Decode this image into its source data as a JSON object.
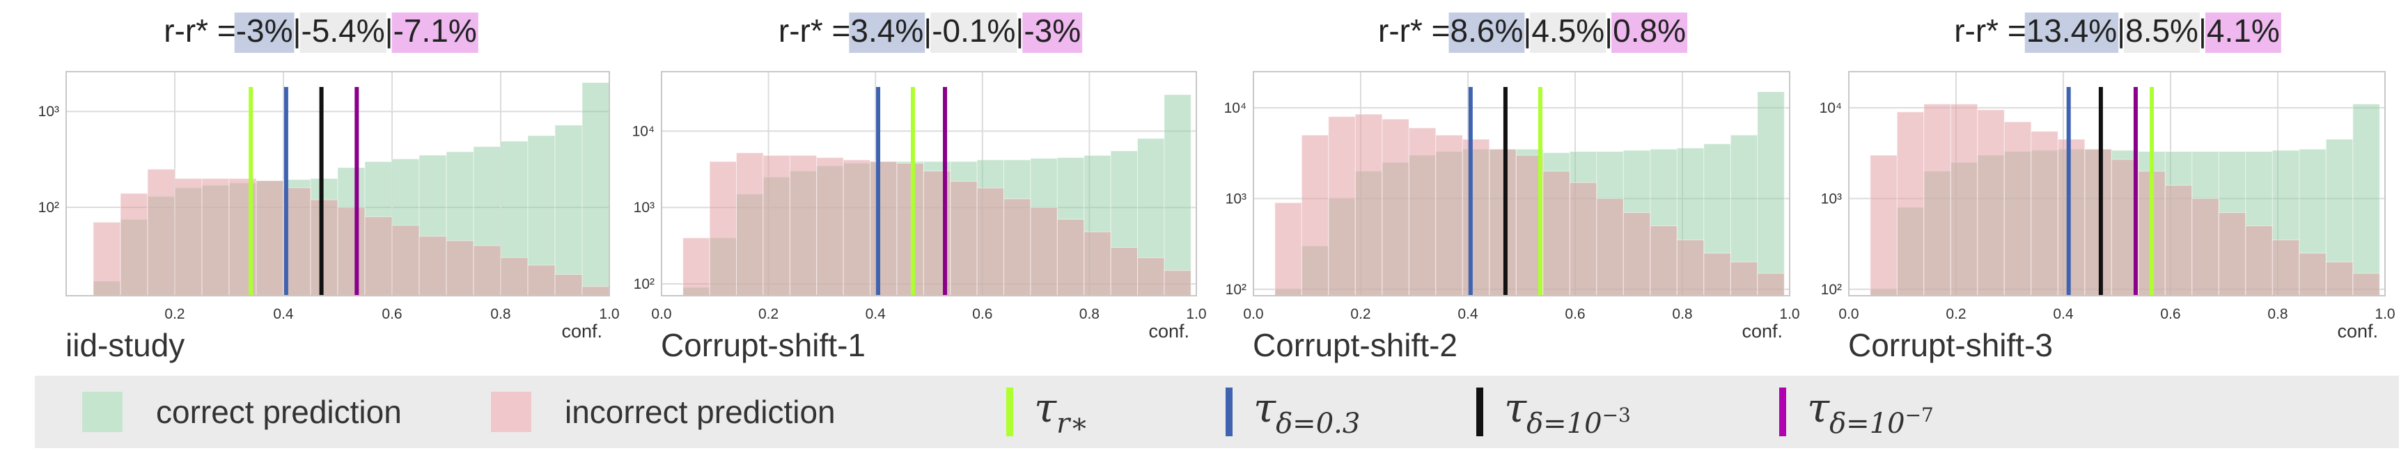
{
  "colors": {
    "correct": "#8fcca4",
    "incorrect": "#e2a0a6",
    "tau_rstar": "#adff2f",
    "tau_d03": "#3f63b0",
    "tau_d1e3": "#111111",
    "tau_d1e7": "#8b008b",
    "box_blue": "#c5cde3",
    "box_gray": "#ececec",
    "box_pink": "#efb8ef"
  },
  "legend": {
    "correct_label": "correct prediction",
    "incorrect_label": "incorrect prediction",
    "tau_rstar": {
      "base": "τ",
      "sub": "r∗"
    },
    "tau_d03": {
      "base": "τ",
      "sub": "δ=0.3"
    },
    "tau_d1e3": {
      "base": "τ",
      "sub": "δ=10",
      "sup": "−3"
    },
    "tau_d1e7": {
      "base": "τ",
      "sub": "δ=10",
      "sup": "−7"
    }
  },
  "chart_data": [
    {
      "type": "bar",
      "name": "iid-study",
      "title_prefix": "r-r* =",
      "risk_gaps": [
        "-3%",
        "-5.4%",
        "-7.1%"
      ],
      "xlabel": "conf.",
      "subplot_label": "iid-study",
      "xlim": [
        0.0,
        1.0
      ],
      "xticks": [
        "0.2",
        "0.4",
        "0.6",
        "0.8",
        "1.0"
      ],
      "log_y": true,
      "ylim": [
        12,
        2600
      ],
      "yticks": [
        {
          "value": 100,
          "label": "10²"
        },
        {
          "value": 1000,
          "label": "10³"
        }
      ],
      "bin_edges": [
        0.05,
        0.1,
        0.15,
        0.2,
        0.25,
        0.3,
        0.35,
        0.4,
        0.45,
        0.5,
        0.55,
        0.6,
        0.65,
        0.7,
        0.75,
        0.8,
        0.85,
        0.9,
        0.95,
        1.0
      ],
      "series": [
        {
          "name": "correct prediction",
          "values": [
            17,
            75,
            130,
            160,
            170,
            180,
            190,
            195,
            200,
            260,
            300,
            320,
            350,
            380,
            430,
            490,
            560,
            720,
            2000
          ]
        },
        {
          "name": "incorrect prediction",
          "values": [
            70,
            140,
            250,
            200,
            200,
            200,
            190,
            160,
            120,
            100,
            80,
            65,
            50,
            45,
            40,
            30,
            25,
            20,
            15
          ]
        }
      ],
      "thresholds": {
        "tau_rstar": 0.34,
        "tau_d03": 0.405,
        "tau_d1e3": 0.47,
        "tau_d1e7": 0.535
      }
    },
    {
      "type": "bar",
      "name": "Corrupt-shift-1",
      "title_prefix": "r-r* =",
      "risk_gaps": [
        "3.4%",
        "-0.1%",
        "-3%"
      ],
      "xlabel": "conf.",
      "subplot_label": "Corrupt-shift-1",
      "xlim": [
        0.0,
        1.0
      ],
      "xticks": [
        "0.0",
        "0.2",
        "0.4",
        "0.6",
        "0.8",
        "1.0"
      ],
      "log_y": true,
      "ylim": [
        70,
        60000
      ],
      "yticks": [
        {
          "value": 100,
          "label": "10²"
        },
        {
          "value": 1000,
          "label": "10³"
        },
        {
          "value": 10000,
          "label": "10⁴"
        }
      ],
      "bin_edges": [
        0.04,
        0.09,
        0.14,
        0.19,
        0.24,
        0.29,
        0.34,
        0.39,
        0.44,
        0.49,
        0.54,
        0.59,
        0.64,
        0.69,
        0.74,
        0.79,
        0.84,
        0.89,
        0.94,
        0.99
      ],
      "series": [
        {
          "name": "correct prediction",
          "values": [
            90,
            400,
            1500,
            2500,
            3000,
            3500,
            3800,
            4000,
            4000,
            4000,
            4000,
            4200,
            4200,
            4400,
            4500,
            4800,
            5500,
            8000,
            30000
          ]
        },
        {
          "name": "incorrect prediction",
          "values": [
            400,
            4000,
            5200,
            4800,
            4800,
            4500,
            4200,
            4000,
            3800,
            3000,
            2200,
            1800,
            1300,
            1000,
            700,
            480,
            300,
            220,
            150
          ]
        }
      ],
      "thresholds": {
        "tau_d03": 0.405,
        "tau_rstar": 0.47,
        "tau_d1e7": 0.53
      }
    },
    {
      "type": "bar",
      "name": "Corrupt-shift-2",
      "title_prefix": "r-r* =",
      "risk_gaps": [
        "8.6%",
        "4.5%",
        "0.8%"
      ],
      "xlabel": "conf.",
      "subplot_label": "Corrupt-shift-2",
      "xlim": [
        0.0,
        1.0
      ],
      "xticks": [
        "0.0",
        "0.2",
        "0.4",
        "0.6",
        "0.8",
        "1.0"
      ],
      "log_y": true,
      "ylim": [
        85,
        25000
      ],
      "yticks": [
        {
          "value": 100,
          "label": "10²"
        },
        {
          "value": 1000,
          "label": "10³"
        },
        {
          "value": 10000,
          "label": "10⁴"
        }
      ],
      "bin_edges": [
        0.04,
        0.09,
        0.14,
        0.19,
        0.24,
        0.29,
        0.34,
        0.39,
        0.44,
        0.49,
        0.54,
        0.59,
        0.64,
        0.69,
        0.74,
        0.79,
        0.84,
        0.89,
        0.94,
        0.99
      ],
      "series": [
        {
          "name": "correct prediction",
          "values": [
            100,
            300,
            1000,
            2000,
            2500,
            3000,
            3300,
            3500,
            3500,
            3500,
            3200,
            3300,
            3300,
            3400,
            3500,
            3600,
            4000,
            5000,
            15000
          ]
        },
        {
          "name": "incorrect prediction",
          "values": [
            900,
            5000,
            8000,
            8500,
            7500,
            6000,
            5000,
            4500,
            3500,
            3000,
            2000,
            1500,
            1000,
            700,
            500,
            350,
            250,
            200,
            150
          ]
        }
      ],
      "thresholds": {
        "tau_d03": 0.405,
        "tau_d1e3": 0.47,
        "tau_rstar": 0.535
      }
    },
    {
      "type": "bar",
      "name": "Corrupt-shift-3",
      "title_prefix": "r-r* =",
      "risk_gaps": [
        "13.4%",
        "8.5%",
        "4.1%"
      ],
      "xlabel": "conf.",
      "subplot_label": "Corrupt-shift-3",
      "xlim": [
        0.0,
        1.0
      ],
      "xticks": [
        "0.0",
        "0.2",
        "0.4",
        "0.6",
        "0.8",
        "1.0"
      ],
      "log_y": true,
      "ylim": [
        85,
        25000
      ],
      "yticks": [
        {
          "value": 100,
          "label": "10²"
        },
        {
          "value": 1000,
          "label": "10³"
        },
        {
          "value": 10000,
          "label": "10⁴"
        }
      ],
      "bin_edges": [
        0.04,
        0.09,
        0.14,
        0.19,
        0.24,
        0.29,
        0.34,
        0.39,
        0.44,
        0.49,
        0.54,
        0.59,
        0.64,
        0.69,
        0.74,
        0.79,
        0.84,
        0.89,
        0.94,
        0.99
      ],
      "series": [
        {
          "name": "correct prediction",
          "values": [
            100,
            800,
            2000,
            2500,
            3000,
            3300,
            3400,
            3500,
            3500,
            3400,
            3300,
            3300,
            3300,
            3300,
            3300,
            3400,
            3500,
            4500,
            11000
          ]
        },
        {
          "name": "incorrect prediction",
          "values": [
            3000,
            9000,
            11000,
            11000,
            9500,
            7000,
            5500,
            4500,
            3500,
            2700,
            2000,
            1400,
            1000,
            700,
            500,
            350,
            250,
            200,
            150
          ]
        }
      ],
      "thresholds": {
        "tau_d03": 0.41,
        "tau_d1e3": 0.47,
        "tau_d1e7": 0.535,
        "tau_rstar": 0.565
      }
    }
  ]
}
